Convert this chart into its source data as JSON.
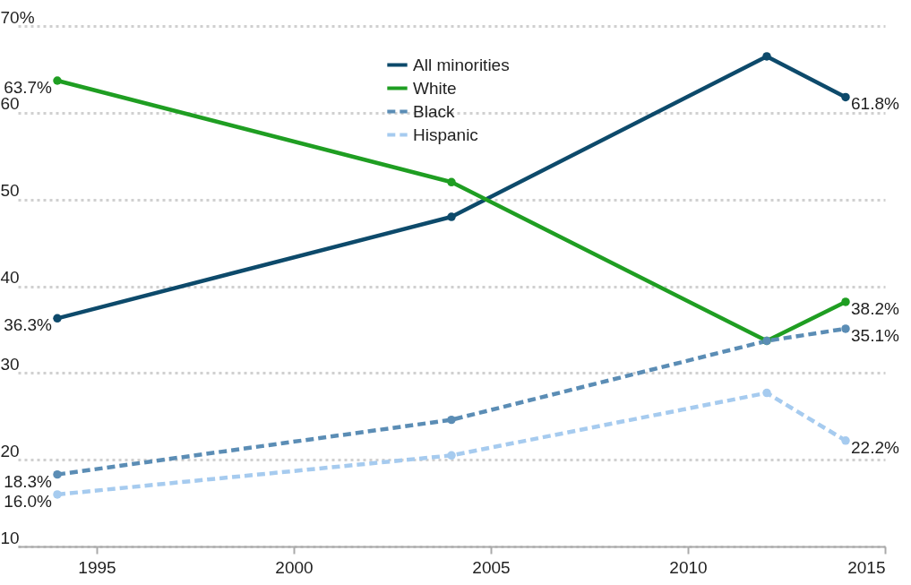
{
  "chart_data": {
    "type": "line",
    "x": [
      1994,
      2004,
      2012,
      2014
    ],
    "series": [
      {
        "name": "All minorities",
        "color": "#0d4a6b",
        "line_style": "solid",
        "values": [
          36.3,
          48.0,
          66.5,
          61.8
        ],
        "value_labels": [
          "36.3%",
          null,
          null,
          "61.8%"
        ]
      },
      {
        "name": "White",
        "color": "#1f9e22",
        "line_style": "solid",
        "values": [
          63.7,
          52.0,
          33.7,
          38.2
        ],
        "value_labels": [
          "63.7%",
          null,
          null,
          "38.2%"
        ]
      },
      {
        "name": "Black",
        "color": "#5b8db5",
        "line_style": "dashed",
        "values": [
          18.3,
          24.6,
          33.7,
          35.1
        ],
        "value_labels": [
          "18.3%",
          null,
          null,
          "35.1%"
        ]
      },
      {
        "name": "Hispanic",
        "color": "#a6cbef",
        "line_style": "dashed",
        "values": [
          16.0,
          20.5,
          27.7,
          22.2
        ],
        "value_labels": [
          "16.0%",
          null,
          null,
          "22.2%"
        ]
      }
    ],
    "xlim": [
      1993,
      2015
    ],
    "xticks": [
      1995,
      2000,
      2005,
      2010,
      2015
    ],
    "ylim": [
      10,
      70
    ],
    "yticks": [
      10,
      20,
      30,
      40,
      50,
      60,
      {
        "value": 70,
        "label": "70%"
      }
    ],
    "grid": "y",
    "legend": "top",
    "marker": "circle"
  }
}
